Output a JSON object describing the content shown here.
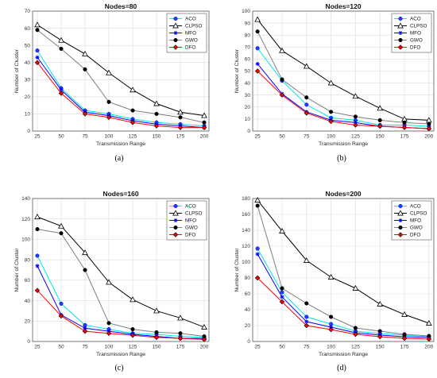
{
  "chart_data": [
    {
      "type": "line",
      "title": "Nodes=80",
      "caption": "(a)",
      "xlabel": "Transmission Range",
      "ylabel": "Number of Cluster",
      "x": [
        25,
        50,
        75,
        100,
        125,
        150,
        175,
        200
      ],
      "xlim": [
        20,
        205
      ],
      "ylim": [
        0,
        70
      ],
      "yticks": [
        0,
        10,
        20,
        30,
        40,
        50,
        60,
        70
      ],
      "grid": true,
      "legend_position": "top-right",
      "series": [
        {
          "name": "ACO",
          "color": "#00e5ee",
          "marker": "circle-blue",
          "values": [
            47,
            25,
            12,
            10,
            7,
            5,
            4,
            3
          ]
        },
        {
          "name": "CLPSO",
          "color": "#000000",
          "marker": "triangle-open",
          "values": [
            62,
            53,
            45,
            34,
            24,
            16,
            11,
            9
          ]
        },
        {
          "name": "MFO",
          "color": "#0000ff",
          "marker": "star",
          "values": [
            43,
            24,
            11,
            9,
            6,
            4,
            3,
            2
          ]
        },
        {
          "name": "GWO",
          "color": "#7f7f7f",
          "marker": "circle-black",
          "values": [
            59,
            48,
            36,
            17,
            12,
            10,
            8,
            5
          ]
        },
        {
          "name": "DFO",
          "color": "#ff0000",
          "marker": "diamond-red",
          "values": [
            40,
            22,
            10,
            8,
            5,
            3,
            2,
            2
          ]
        }
      ]
    },
    {
      "type": "line",
      "title": "Nodes=120",
      "caption": "(b)",
      "xlabel": "Transmission Range",
      "ylabel": "Number of Cluster",
      "x": [
        25,
        50,
        75,
        100,
        125,
        150,
        175,
        200
      ],
      "xlim": [
        20,
        205
      ],
      "ylim": [
        0,
        100
      ],
      "yticks": [
        0,
        10,
        20,
        30,
        40,
        50,
        60,
        70,
        80,
        90,
        100
      ],
      "grid": true,
      "legend_position": "top-right",
      "series": [
        {
          "name": "ACO",
          "color": "#00e5ee",
          "marker": "circle-blue",
          "values": [
            69,
            42,
            22,
            11,
            9,
            5,
            5,
            4
          ]
        },
        {
          "name": "CLPSO",
          "color": "#000000",
          "marker": "triangle-open",
          "values": [
            93,
            67,
            54,
            40,
            29,
            19,
            10,
            9
          ]
        },
        {
          "name": "MFO",
          "color": "#0000ff",
          "marker": "star",
          "values": [
            56,
            31,
            16,
            9,
            7,
            4,
            3,
            2
          ]
        },
        {
          "name": "GWO",
          "color": "#7f7f7f",
          "marker": "circle-black",
          "values": [
            83,
            43,
            28,
            16,
            12,
            9,
            7,
            6
          ]
        },
        {
          "name": "DFO",
          "color": "#ff0000",
          "marker": "diamond-red",
          "values": [
            50,
            30,
            15,
            8,
            5,
            4,
            3,
            2
          ]
        }
      ]
    },
    {
      "type": "line",
      "title": "Nodes=160",
      "caption": "(c)",
      "xlabel": "Transmission Range",
      "ylabel": "Number of Cluster",
      "x": [
        25,
        50,
        75,
        100,
        125,
        150,
        175,
        200
      ],
      "xlim": [
        20,
        205
      ],
      "ylim": [
        0,
        140
      ],
      "yticks": [
        0,
        20,
        40,
        60,
        80,
        100,
        120,
        140
      ],
      "grid": true,
      "legend_position": "top-right",
      "series": [
        {
          "name": "ACO",
          "color": "#00e5ee",
          "marker": "circle-blue",
          "values": [
            84,
            37,
            16,
            12,
            8,
            7,
            5,
            4
          ]
        },
        {
          "name": "CLPSO",
          "color": "#000000",
          "marker": "triangle-open",
          "values": [
            122,
            113,
            87,
            58,
            41,
            30,
            23,
            14
          ]
        },
        {
          "name": "MFO",
          "color": "#0000ff",
          "marker": "star",
          "values": [
            74,
            26,
            13,
            10,
            7,
            5,
            3,
            3
          ]
        },
        {
          "name": "GWO",
          "color": "#7f7f7f",
          "marker": "circle-black",
          "values": [
            110,
            106,
            70,
            18,
            12,
            9,
            8,
            5
          ]
        },
        {
          "name": "DFO",
          "color": "#ff0000",
          "marker": "diamond-red",
          "values": [
            50,
            25,
            10,
            8,
            6,
            4,
            3,
            2
          ]
        }
      ]
    },
    {
      "type": "line",
      "title": "Nodes=200",
      "caption": "(d)",
      "xlabel": "Transmission Range",
      "ylabel": "Number of Cluster",
      "x": [
        25,
        50,
        75,
        100,
        125,
        150,
        175,
        200
      ],
      "xlim": [
        20,
        205
      ],
      "ylim": [
        0,
        180
      ],
      "yticks": [
        0,
        20,
        40,
        60,
        80,
        100,
        120,
        140,
        160,
        180
      ],
      "grid": true,
      "legend_position": "top-right",
      "series": [
        {
          "name": "ACO",
          "color": "#00e5ee",
          "marker": "circle-blue",
          "values": [
            117,
            62,
            31,
            22,
            13,
            10,
            8,
            6
          ]
        },
        {
          "name": "CLPSO",
          "color": "#000000",
          "marker": "triangle-open",
          "values": [
            178,
            139,
            102,
            81,
            67,
            47,
            34,
            23
          ]
        },
        {
          "name": "MFO",
          "color": "#0000ff",
          "marker": "star",
          "values": [
            110,
            56,
            25,
            18,
            11,
            8,
            6,
            5
          ]
        },
        {
          "name": "GWO",
          "color": "#7f7f7f",
          "marker": "circle-black",
          "values": [
            171,
            67,
            48,
            31,
            17,
            13,
            9,
            7
          ]
        },
        {
          "name": "DFO",
          "color": "#ff0000",
          "marker": "diamond-red",
          "values": [
            80,
            50,
            20,
            15,
            9,
            6,
            4,
            3
          ]
        }
      ]
    }
  ]
}
